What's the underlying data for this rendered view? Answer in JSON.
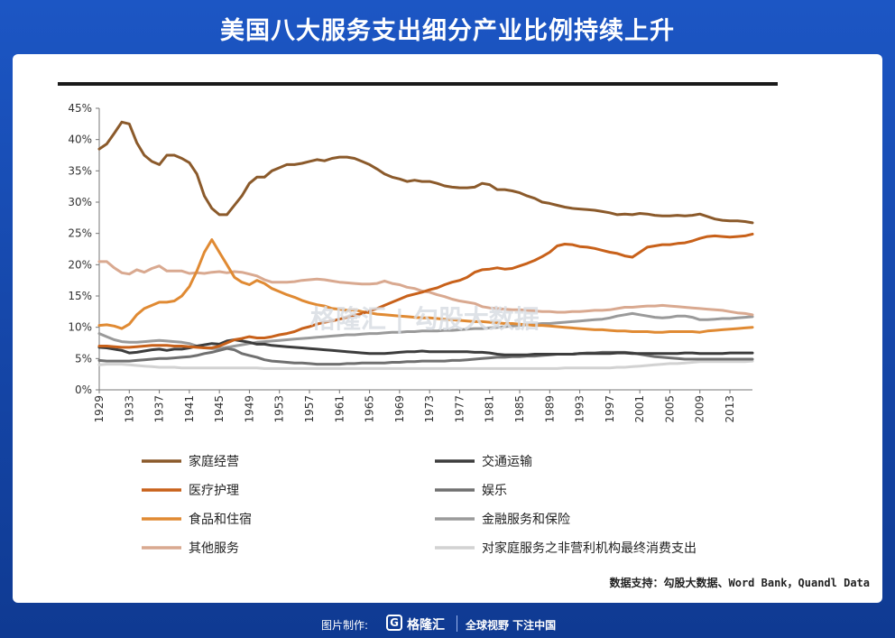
{
  "header": {
    "title": "美国八大服务支出细分产业比例持续上升"
  },
  "footer": {
    "credit": "图片制作:",
    "logo_letter": "G",
    "brand": "格隆汇",
    "slogan": "全球视野 下注中国"
  },
  "watermark": "格隆汇 | 勾股大数据",
  "source": "数据支持：勾股大数据、Word Bank，Quandl Data",
  "chart_data": {
    "type": "line",
    "x": [
      1929,
      1930,
      1931,
      1932,
      1933,
      1934,
      1935,
      1936,
      1937,
      1938,
      1939,
      1940,
      1941,
      1942,
      1943,
      1944,
      1945,
      1946,
      1947,
      1948,
      1949,
      1950,
      1951,
      1952,
      1953,
      1954,
      1955,
      1956,
      1957,
      1958,
      1959,
      1960,
      1961,
      1962,
      1963,
      1964,
      1965,
      1966,
      1967,
      1968,
      1969,
      1970,
      1971,
      1972,
      1973,
      1974,
      1975,
      1976,
      1977,
      1978,
      1979,
      1980,
      1981,
      1982,
      1983,
      1984,
      1985,
      1986,
      1987,
      1988,
      1989,
      1990,
      1991,
      1992,
      1993,
      1994,
      1995,
      1996,
      1997,
      1998,
      1999,
      2000,
      2001,
      2002,
      2003,
      2004,
      2005,
      2006,
      2007,
      2008,
      2009,
      2010,
      2011,
      2012,
      2013,
      2014,
      2015,
      2016
    ],
    "x_ticks": [
      "1929",
      "1933",
      "1937",
      "1941",
      "1945",
      "1949",
      "1953",
      "1957",
      "1961",
      "1965",
      "1969",
      "1973",
      "1977",
      "1981",
      "1985",
      "1989",
      "1993",
      "1997",
      "2001",
      "2005",
      "2009",
      "2013"
    ],
    "y_ticks": [
      "0%",
      "5%",
      "10%",
      "15%",
      "20%",
      "25%",
      "30%",
      "35%",
      "40%",
      "45%"
    ],
    "ylim": [
      0,
      45
    ],
    "grid": false,
    "legend_position": "bottom",
    "series": [
      {
        "name": "家庭经营",
        "color": "#8b5a2b",
        "values": [
          38.5,
          39.3,
          41,
          42.8,
          42.5,
          39.5,
          37.5,
          36.5,
          36,
          37.5,
          37.5,
          37,
          36.3,
          34.5,
          31,
          29,
          28,
          28,
          29.5,
          31,
          33,
          34,
          34,
          35,
          35.5,
          36,
          36,
          36.2,
          36.5,
          36.8,
          36.6,
          37,
          37.2,
          37.2,
          37,
          36.5,
          36,
          35.3,
          34.5,
          34,
          33.7,
          33.3,
          33.5,
          33.3,
          33.3,
          33,
          32.6,
          32.4,
          32.3,
          32.3,
          32.4,
          33,
          32.8,
          32,
          32,
          31.8,
          31.5,
          31,
          30.6,
          30,
          29.8,
          29.5,
          29.2,
          29,
          28.9,
          28.8,
          28.7,
          28.5,
          28.3,
          28,
          28.1,
          28,
          28.2,
          28.1,
          27.9,
          27.8,
          27.8,
          27.9,
          27.8,
          27.9,
          28.1,
          27.7,
          27.3,
          27.1,
          27,
          27,
          26.9,
          26.7
        ]
      },
      {
        "name": "医疗护理",
        "color": "#c8611a",
        "values": [
          7,
          7,
          6.9,
          6.8,
          6.8,
          6.9,
          7,
          7.1,
          7.1,
          7.1,
          7,
          7,
          6.9,
          6.8,
          6.7,
          6.7,
          7,
          7.5,
          8,
          8.2,
          8.5,
          8.3,
          8.3,
          8.5,
          8.8,
          9,
          9.3,
          9.8,
          10.1,
          10.5,
          10.8,
          11,
          11.3,
          11.6,
          11.9,
          12.2,
          12.6,
          13,
          13.5,
          14,
          14.5,
          15,
          15.3,
          15.6,
          16,
          16.3,
          16.8,
          17.2,
          17.5,
          18,
          18.8,
          19.2,
          19.3,
          19.5,
          19.3,
          19.4,
          19.8,
          20.2,
          20.7,
          21.3,
          22,
          23,
          23.3,
          23.2,
          22.9,
          22.8,
          22.6,
          22.3,
          22,
          21.8,
          21.4,
          21.2,
          22,
          22.8,
          23,
          23.2,
          23.2,
          23.4,
          23.5,
          23.8,
          24.2,
          24.5,
          24.6,
          24.5,
          24.4,
          24.5,
          24.6,
          24.9
        ]
      },
      {
        "name": "食品和住宿",
        "color": "#e08a33",
        "values": [
          10.3,
          10.4,
          10.2,
          9.8,
          10.5,
          12,
          13,
          13.5,
          14,
          14,
          14.2,
          15,
          16.5,
          19,
          22,
          24,
          22,
          20,
          18,
          17.2,
          16.8,
          17.5,
          17,
          16.2,
          15.7,
          15.2,
          14.8,
          14.3,
          13.9,
          13.6,
          13.4,
          13,
          12.9,
          12.7,
          12.8,
          12.5,
          12.3,
          12.1,
          12,
          11.9,
          11.8,
          11.7,
          11.6,
          11.5,
          11.5,
          11.4,
          11.3,
          11.2,
          11.1,
          11,
          10.9,
          10.9,
          10.8,
          10.7,
          10.6,
          10.6,
          10.5,
          10.4,
          10.3,
          10.3,
          10.2,
          10.1,
          10,
          9.9,
          9.8,
          9.7,
          9.6,
          9.6,
          9.5,
          9.4,
          9.4,
          9.3,
          9.3,
          9.3,
          9.2,
          9.2,
          9.3,
          9.3,
          9.3,
          9.3,
          9.2,
          9.4,
          9.5,
          9.6,
          9.7,
          9.8,
          9.9,
          10
        ]
      },
      {
        "name": "其他服务",
        "color": "#d9a990",
        "values": [
          20.5,
          20.5,
          19.5,
          18.7,
          18.5,
          19.2,
          18.8,
          19.4,
          19.8,
          19,
          19,
          19,
          18.6,
          18.7,
          18.6,
          18.8,
          18.9,
          18.7,
          18.9,
          18.8,
          18.5,
          18.2,
          17.6,
          17.2,
          17.2,
          17.2,
          17.3,
          17.5,
          17.6,
          17.7,
          17.6,
          17.4,
          17.2,
          17.1,
          17,
          16.9,
          16.9,
          17,
          17.4,
          17,
          16.8,
          16.4,
          16.2,
          15.8,
          15.6,
          15.2,
          14.9,
          14.5,
          14.2,
          14,
          13.8,
          13.3,
          13.1,
          13,
          12.9,
          12.8,
          12.8,
          12.7,
          12.6,
          12.5,
          12.5,
          12.4,
          12.4,
          12.5,
          12.5,
          12.6,
          12.7,
          12.7,
          12.8,
          13,
          13.2,
          13.2,
          13.3,
          13.4,
          13.4,
          13.5,
          13.4,
          13.3,
          13.2,
          13.1,
          13,
          12.9,
          12.8,
          12.7,
          12.5,
          12.3,
          12.2,
          12
        ]
      },
      {
        "name": "交通运输",
        "color": "#3d3d3d",
        "values": [
          6.8,
          6.7,
          6.5,
          6.3,
          5.9,
          6,
          6.2,
          6.4,
          6.5,
          6.3,
          6.5,
          6.5,
          6.7,
          7,
          7.2,
          7.4,
          7.3,
          7.8,
          8,
          7.8,
          7.6,
          7.3,
          7.3,
          7.1,
          7,
          6.9,
          6.8,
          6.7,
          6.6,
          6.5,
          6.4,
          6.3,
          6.2,
          6.1,
          6,
          5.9,
          5.8,
          5.8,
          5.8,
          5.9,
          6,
          6.1,
          6.1,
          6.2,
          6.1,
          6.1,
          6.1,
          6.1,
          6.1,
          6.1,
          6,
          6,
          5.9,
          5.7,
          5.6,
          5.6,
          5.6,
          5.6,
          5.7,
          5.7,
          5.7,
          5.7,
          5.7,
          5.7,
          5.8,
          5.8,
          5.8,
          5.8,
          5.8,
          5.9,
          5.9,
          5.8,
          5.8,
          5.8,
          5.8,
          5.8,
          5.8,
          5.8,
          5.9,
          5.9,
          5.8,
          5.8,
          5.8,
          5.8,
          5.9,
          5.9,
          5.9,
          5.9
        ]
      },
      {
        "name": "娱乐",
        "color": "#707070",
        "values": [
          4.7,
          4.6,
          4.6,
          4.6,
          4.6,
          4.7,
          4.8,
          4.9,
          5,
          5,
          5.1,
          5.2,
          5.3,
          5.5,
          5.8,
          6,
          6.3,
          6.6,
          6.4,
          5.8,
          5.5,
          5.2,
          4.8,
          4.6,
          4.5,
          4.4,
          4.3,
          4.3,
          4.2,
          4.1,
          4.1,
          4.1,
          4.1,
          4.2,
          4.2,
          4.3,
          4.3,
          4.3,
          4.3,
          4.4,
          4.4,
          4.5,
          4.5,
          4.6,
          4.6,
          4.6,
          4.6,
          4.7,
          4.7,
          4.8,
          4.9,
          5,
          5.1,
          5.2,
          5.2,
          5.3,
          5.3,
          5.4,
          5.4,
          5.5,
          5.6,
          5.7,
          5.7,
          5.7,
          5.8,
          5.9,
          5.9,
          6,
          6,
          6,
          6,
          5.9,
          5.7,
          5.5,
          5.3,
          5.2,
          5.1,
          5,
          4.9,
          4.9,
          4.9,
          4.9,
          4.9,
          4.9,
          4.9,
          4.9,
          4.9,
          4.9
        ]
      },
      {
        "name": "金融服务和保险",
        "color": "#9a9a9a",
        "values": [
          9,
          8.5,
          8,
          7.7,
          7.6,
          7.6,
          7.7,
          7.8,
          7.9,
          7.8,
          7.7,
          7.6,
          7.4,
          7,
          6.7,
          6.6,
          6.6,
          6.8,
          7,
          7.2,
          7.4,
          7.6,
          7.7,
          7.8,
          7.9,
          8,
          8.1,
          8.2,
          8.3,
          8.4,
          8.5,
          8.6,
          8.7,
          8.8,
          8.8,
          8.9,
          9,
          9,
          9.1,
          9.2,
          9.2,
          9.3,
          9.3,
          9.4,
          9.4,
          9.4,
          9.5,
          9.5,
          9.6,
          9.7,
          9.8,
          9.8,
          9.9,
          10,
          10.1,
          10.2,
          10.3,
          10.4,
          10.5,
          10.6,
          10.6,
          10.7,
          10.8,
          10.9,
          11,
          11.1,
          11.2,
          11.3,
          11.5,
          11.8,
          12,
          12.2,
          12,
          11.8,
          11.6,
          11.5,
          11.6,
          11.8,
          11.8,
          11.6,
          11.2,
          11.2,
          11.3,
          11.4,
          11.4,
          11.5,
          11.6,
          11.7
        ]
      },
      {
        "name": "对家庭服务之非营利机构最终消费支出",
        "color": "#d2d2d2",
        "values": [
          4,
          4.1,
          4.1,
          4.1,
          4,
          3.9,
          3.8,
          3.7,
          3.6,
          3.6,
          3.6,
          3.5,
          3.5,
          3.5,
          3.5,
          3.5,
          3.5,
          3.5,
          3.5,
          3.5,
          3.5,
          3.5,
          3.4,
          3.4,
          3.4,
          3.4,
          3.4,
          3.4,
          3.4,
          3.4,
          3.4,
          3.4,
          3.4,
          3.4,
          3.4,
          3.4,
          3.4,
          3.4,
          3.4,
          3.4,
          3.4,
          3.4,
          3.4,
          3.4,
          3.4,
          3.4,
          3.4,
          3.4,
          3.4,
          3.4,
          3.4,
          3.4,
          3.4,
          3.4,
          3.4,
          3.4,
          3.4,
          3.4,
          3.4,
          3.4,
          3.4,
          3.4,
          3.5,
          3.5,
          3.5,
          3.5,
          3.5,
          3.5,
          3.5,
          3.6,
          3.6,
          3.7,
          3.8,
          3.9,
          4,
          4.1,
          4.2,
          4.2,
          4.3,
          4.4,
          4.5,
          4.5,
          4.5,
          4.5,
          4.5,
          4.5,
          4.5,
          4.6
        ]
      }
    ]
  }
}
